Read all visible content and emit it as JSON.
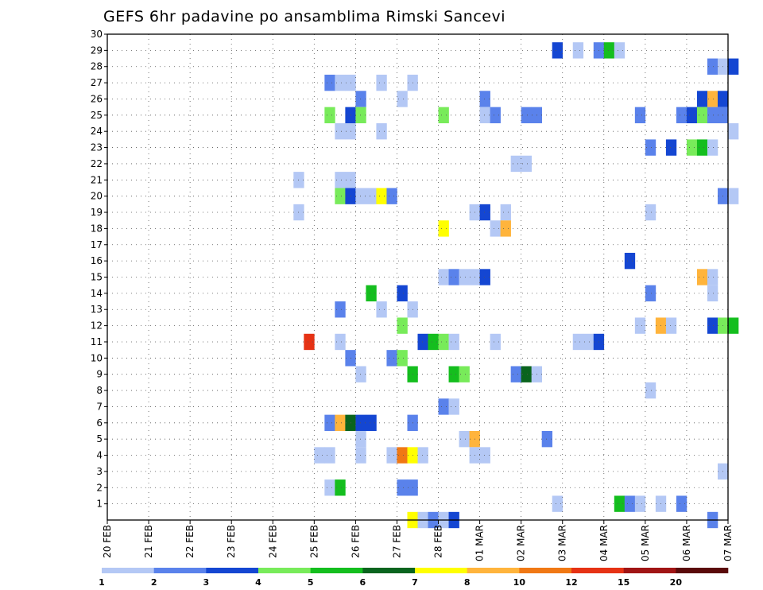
{
  "chart_data": {
    "type": "heatmap",
    "title": "GEFS 6hr padavine po ansamblima Rimski Sancevi",
    "xlabel": "",
    "ylabel": "",
    "y_ticks": [
      1,
      2,
      3,
      4,
      5,
      6,
      7,
      8,
      9,
      10,
      11,
      12,
      13,
      14,
      15,
      16,
      17,
      18,
      19,
      20,
      21,
      22,
      23,
      24,
      25,
      26,
      27,
      28,
      29,
      30
    ],
    "ylim": [
      0,
      30
    ],
    "x_ticks": [
      "20 FEB",
      "21 FEB",
      "22 FEB",
      "23 FEB",
      "24 FEB",
      "25 FEB",
      "26 FEB",
      "27 FEB",
      "28 FEB",
      "01 MAR",
      "02 MAR",
      "03 MAR",
      "04 MAR",
      "05 MAR",
      "06 MAR",
      "07 MAR"
    ],
    "xlim_days": [
      0,
      15
    ],
    "step_hours": 6,
    "grid": true,
    "colorbar": {
      "labels": [
        "1",
        "2",
        "3",
        "4",
        "5",
        "6",
        "7",
        "8",
        "10",
        "12",
        "15",
        "20"
      ],
      "colors": [
        "#b4c8f5",
        "#5a82eb",
        "#1446d2",
        "#78eb5a",
        "#14be1e",
        "#0a641e",
        "#ffff00",
        "#ffb43c",
        "#f07814",
        "#e63214",
        "#a01414",
        "#5a0a0a"
      ]
    },
    "cells": [
      {
        "t": 43,
        "m": 29,
        "c": 2
      },
      {
        "t": 45,
        "m": 29,
        "c": 0
      },
      {
        "t": 47,
        "m": 29,
        "c": 1
      },
      {
        "t": 48,
        "m": 29,
        "c": 4
      },
      {
        "t": 49,
        "m": 29,
        "c": 0
      },
      {
        "t": 58,
        "m": 28,
        "c": 1
      },
      {
        "t": 59,
        "m": 28,
        "c": 0
      },
      {
        "t": 60,
        "m": 28,
        "c": 2
      },
      {
        "t": 21,
        "m": 27,
        "c": 1
      },
      {
        "t": 22,
        "m": 27,
        "c": 0
      },
      {
        "t": 23,
        "m": 27,
        "c": 0
      },
      {
        "t": 26,
        "m": 27,
        "c": 0
      },
      {
        "t": 29,
        "m": 27,
        "c": 0
      },
      {
        "t": 24,
        "m": 26,
        "c": 1
      },
      {
        "t": 28,
        "m": 26,
        "c": 0
      },
      {
        "t": 36,
        "m": 26,
        "c": 1
      },
      {
        "t": 57,
        "m": 26,
        "c": 2
      },
      {
        "t": 58,
        "m": 26,
        "c": 7
      },
      {
        "t": 59,
        "m": 26,
        "c": 2
      },
      {
        "t": 21,
        "m": 25,
        "c": 3
      },
      {
        "t": 23,
        "m": 25,
        "c": 2
      },
      {
        "t": 24,
        "m": 25,
        "c": 3
      },
      {
        "t": 32,
        "m": 25,
        "c": 3
      },
      {
        "t": 36,
        "m": 25,
        "c": 0
      },
      {
        "t": 37,
        "m": 25,
        "c": 1
      },
      {
        "t": 40,
        "m": 25,
        "c": 1
      },
      {
        "t": 41,
        "m": 25,
        "c": 1
      },
      {
        "t": 51,
        "m": 25,
        "c": 1
      },
      {
        "t": 55,
        "m": 25,
        "c": 1
      },
      {
        "t": 56,
        "m": 25,
        "c": 2
      },
      {
        "t": 57,
        "m": 25,
        "c": 3
      },
      {
        "t": 58,
        "m": 25,
        "c": 1
      },
      {
        "t": 59,
        "m": 25,
        "c": 1
      },
      {
        "t": 22,
        "m": 24,
        "c": 0
      },
      {
        "t": 23,
        "m": 24,
        "c": 0
      },
      {
        "t": 26,
        "m": 24,
        "c": 0
      },
      {
        "t": 60,
        "m": 24,
        "c": 0
      },
      {
        "t": 52,
        "m": 23,
        "c": 1
      },
      {
        "t": 54,
        "m": 23,
        "c": 2
      },
      {
        "t": 56,
        "m": 23,
        "c": 3
      },
      {
        "t": 57,
        "m": 23,
        "c": 4
      },
      {
        "t": 58,
        "m": 23,
        "c": 0
      },
      {
        "t": 39,
        "m": 22,
        "c": 0
      },
      {
        "t": 40,
        "m": 22,
        "c": 0
      },
      {
        "t": 18,
        "m": 21,
        "c": 0
      },
      {
        "t": 22,
        "m": 21,
        "c": 0
      },
      {
        "t": 23,
        "m": 21,
        "c": 0
      },
      {
        "t": 22,
        "m": 20,
        "c": 3
      },
      {
        "t": 23,
        "m": 20,
        "c": 2
      },
      {
        "t": 24,
        "m": 20,
        "c": 0
      },
      {
        "t": 25,
        "m": 20,
        "c": 0
      },
      {
        "t": 26,
        "m": 20,
        "c": 6
      },
      {
        "t": 27,
        "m": 20,
        "c": 1
      },
      {
        "t": 59,
        "m": 20,
        "c": 1
      },
      {
        "t": 60,
        "m": 20,
        "c": 0
      },
      {
        "t": 18,
        "m": 19,
        "c": 0
      },
      {
        "t": 35,
        "m": 19,
        "c": 0
      },
      {
        "t": 36,
        "m": 19,
        "c": 2
      },
      {
        "t": 38,
        "m": 19,
        "c": 0
      },
      {
        "t": 52,
        "m": 19,
        "c": 0
      },
      {
        "t": 32,
        "m": 18,
        "c": 6
      },
      {
        "t": 37,
        "m": 18,
        "c": 0
      },
      {
        "t": 38,
        "m": 18,
        "c": 7
      },
      {
        "t": 50,
        "m": 16,
        "c": 2
      },
      {
        "t": 32,
        "m": 15,
        "c": 0
      },
      {
        "t": 33,
        "m": 15,
        "c": 1
      },
      {
        "t": 34,
        "m": 15,
        "c": 0
      },
      {
        "t": 35,
        "m": 15,
        "c": 0
      },
      {
        "t": 36,
        "m": 15,
        "c": 2
      },
      {
        "t": 57,
        "m": 15,
        "c": 7
      },
      {
        "t": 58,
        "m": 15,
        "c": 0
      },
      {
        "t": 25,
        "m": 14,
        "c": 4
      },
      {
        "t": 28,
        "m": 14,
        "c": 2
      },
      {
        "t": 52,
        "m": 14,
        "c": 1
      },
      {
        "t": 58,
        "m": 14,
        "c": 0
      },
      {
        "t": 22,
        "m": 13,
        "c": 1
      },
      {
        "t": 26,
        "m": 13,
        "c": 0
      },
      {
        "t": 29,
        "m": 13,
        "c": 0
      },
      {
        "t": 28,
        "m": 12,
        "c": 3
      },
      {
        "t": 51,
        "m": 12,
        "c": 0
      },
      {
        "t": 53,
        "m": 12,
        "c": 7
      },
      {
        "t": 54,
        "m": 12,
        "c": 0
      },
      {
        "t": 58,
        "m": 12,
        "c": 2
      },
      {
        "t": 59,
        "m": 12,
        "c": 3
      },
      {
        "t": 60,
        "m": 12,
        "c": 4
      },
      {
        "t": 19,
        "m": 11,
        "c": 9
      },
      {
        "t": 22,
        "m": 11,
        "c": 0
      },
      {
        "t": 30,
        "m": 11,
        "c": 2
      },
      {
        "t": 31,
        "m": 11,
        "c": 4
      },
      {
        "t": 32,
        "m": 11,
        "c": 3
      },
      {
        "t": 33,
        "m": 11,
        "c": 0
      },
      {
        "t": 37,
        "m": 11,
        "c": 0
      },
      {
        "t": 45,
        "m": 11,
        "c": 0
      },
      {
        "t": 46,
        "m": 11,
        "c": 0
      },
      {
        "t": 47,
        "m": 11,
        "c": 2
      },
      {
        "t": 23,
        "m": 10,
        "c": 1
      },
      {
        "t": 27,
        "m": 10,
        "c": 1
      },
      {
        "t": 28,
        "m": 10,
        "c": 3
      },
      {
        "t": 24,
        "m": 9,
        "c": 0
      },
      {
        "t": 29,
        "m": 9,
        "c": 4
      },
      {
        "t": 33,
        "m": 9,
        "c": 4
      },
      {
        "t": 34,
        "m": 9,
        "c": 3
      },
      {
        "t": 39,
        "m": 9,
        "c": 1
      },
      {
        "t": 40,
        "m": 9,
        "c": 5
      },
      {
        "t": 41,
        "m": 9,
        "c": 0
      },
      {
        "t": 52,
        "m": 8,
        "c": 0
      },
      {
        "t": 32,
        "m": 7,
        "c": 1
      },
      {
        "t": 33,
        "m": 7,
        "c": 0
      },
      {
        "t": 21,
        "m": 6,
        "c": 1
      },
      {
        "t": 22,
        "m": 6,
        "c": 7
      },
      {
        "t": 23,
        "m": 6,
        "c": 5
      },
      {
        "t": 24,
        "m": 6,
        "c": 2
      },
      {
        "t": 25,
        "m": 6,
        "c": 2
      },
      {
        "t": 29,
        "m": 6,
        "c": 1
      },
      {
        "t": 24,
        "m": 5,
        "c": 0
      },
      {
        "t": 34,
        "m": 5,
        "c": 0
      },
      {
        "t": 35,
        "m": 5,
        "c": 7
      },
      {
        "t": 42,
        "m": 5,
        "c": 1
      },
      {
        "t": 20,
        "m": 4,
        "c": 0
      },
      {
        "t": 21,
        "m": 4,
        "c": 0
      },
      {
        "t": 24,
        "m": 4,
        "c": 0
      },
      {
        "t": 27,
        "m": 4,
        "c": 0
      },
      {
        "t": 28,
        "m": 4,
        "c": 8
      },
      {
        "t": 29,
        "m": 4,
        "c": 6
      },
      {
        "t": 30,
        "m": 4,
        "c": 0
      },
      {
        "t": 35,
        "m": 4,
        "c": 0
      },
      {
        "t": 36,
        "m": 4,
        "c": 0
      },
      {
        "t": 59,
        "m": 3,
        "c": 0
      },
      {
        "t": 21,
        "m": 2,
        "c": 0
      },
      {
        "t": 22,
        "m": 2,
        "c": 4
      },
      {
        "t": 28,
        "m": 2,
        "c": 1
      },
      {
        "t": 29,
        "m": 2,
        "c": 1
      },
      {
        "t": 43,
        "m": 1,
        "c": 0
      },
      {
        "t": 49,
        "m": 1,
        "c": 4
      },
      {
        "t": 50,
        "m": 1,
        "c": 1
      },
      {
        "t": 51,
        "m": 1,
        "c": 0
      },
      {
        "t": 53,
        "m": 1,
        "c": 0
      },
      {
        "t": 55,
        "m": 1,
        "c": 1
      },
      {
        "t": 29,
        "m": 0,
        "c": 6
      },
      {
        "t": 30,
        "m": 0,
        "c": 0
      },
      {
        "t": 31,
        "m": 0,
        "c": 1
      },
      {
        "t": 32,
        "m": 0,
        "c": 0
      },
      {
        "t": 33,
        "m": 0,
        "c": 2
      },
      {
        "t": 58,
        "m": 0,
        "c": 1
      }
    ]
  }
}
